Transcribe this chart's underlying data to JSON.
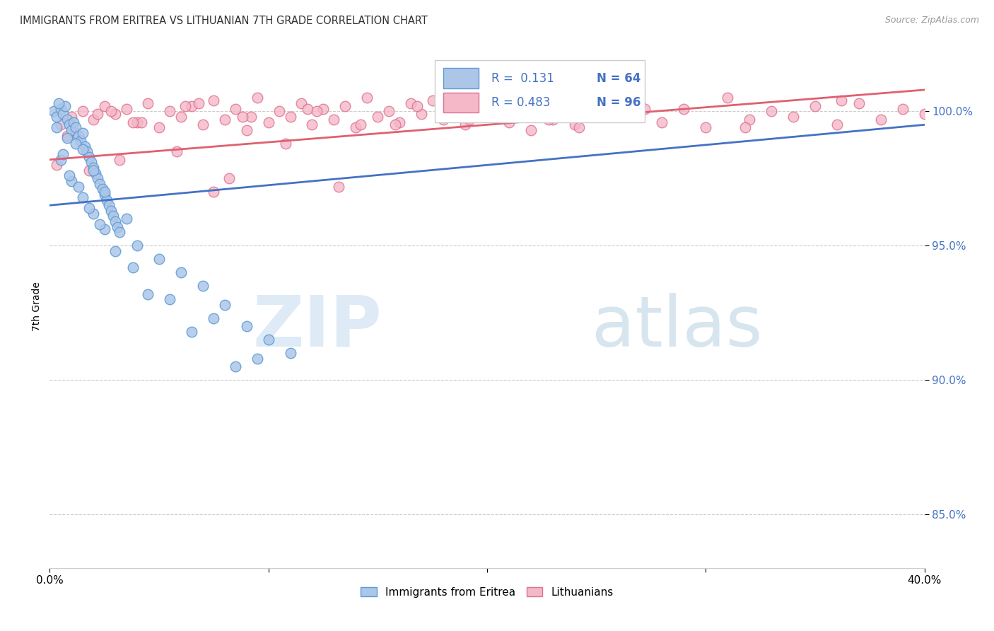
{
  "title": "IMMIGRANTS FROM ERITREA VS LITHUANIAN 7TH GRADE CORRELATION CHART",
  "source": "Source: ZipAtlas.com",
  "ylabel": "7th Grade",
  "xlim": [
    0.0,
    40.0
  ],
  "ylim": [
    83.0,
    102.5
  ],
  "yticks": [
    85.0,
    90.0,
    95.0,
    100.0
  ],
  "ytick_labels": [
    "85.0%",
    "90.0%",
    "95.0%",
    "100.0%"
  ],
  "legend_r1": "R =  0.131",
  "legend_n1": "N = 64",
  "legend_r2": "R = 0.483",
  "legend_n2": "N = 96",
  "series1_name": "Immigrants from Eritrea",
  "series2_name": "Lithuanians",
  "color_blue_fill": "#adc6e8",
  "color_blue_edge": "#5b9bd5",
  "color_pink_fill": "#f4b8c8",
  "color_pink_edge": "#e07090",
  "color_blue_line": "#4472c4",
  "color_pink_line": "#e06070",
  "blue_scatter_x": [
    0.2,
    0.3,
    0.5,
    0.6,
    0.7,
    0.8,
    0.9,
    1.0,
    1.1,
    1.2,
    1.3,
    1.4,
    1.5,
    1.6,
    1.7,
    1.8,
    1.9,
    2.0,
    2.1,
    2.2,
    2.3,
    2.4,
    2.5,
    2.6,
    2.7,
    2.8,
    2.9,
    3.0,
    3.1,
    3.2,
    0.4,
    0.8,
    1.2,
    1.5,
    2.0,
    2.5,
    3.5,
    4.0,
    5.0,
    6.0,
    7.0,
    8.0,
    9.0,
    10.0,
    11.0,
    0.5,
    1.0,
    1.5,
    2.0,
    2.5,
    0.3,
    0.6,
    0.9,
    1.3,
    1.8,
    2.3,
    3.0,
    4.5,
    6.5,
    8.5,
    3.8,
    5.5,
    7.5,
    9.5
  ],
  "blue_scatter_y": [
    100.0,
    99.8,
    100.1,
    99.9,
    100.2,
    99.7,
    99.5,
    99.3,
    99.6,
    99.4,
    99.1,
    98.9,
    99.2,
    98.7,
    98.5,
    98.3,
    98.1,
    97.9,
    97.7,
    97.5,
    97.3,
    97.1,
    96.9,
    96.7,
    96.5,
    96.3,
    96.1,
    95.9,
    95.7,
    95.5,
    100.3,
    99.0,
    98.8,
    98.6,
    97.8,
    97.0,
    96.0,
    95.0,
    94.5,
    94.0,
    93.5,
    92.8,
    92.0,
    91.5,
    91.0,
    98.2,
    97.4,
    96.8,
    96.2,
    95.6,
    99.4,
    98.4,
    97.6,
    97.2,
    96.4,
    95.8,
    94.8,
    93.2,
    91.8,
    90.5,
    94.2,
    93.0,
    92.3,
    90.8
  ],
  "pink_scatter_x": [
    0.5,
    1.0,
    1.5,
    2.0,
    2.5,
    3.0,
    3.5,
    4.0,
    4.5,
    5.0,
    5.5,
    6.0,
    6.5,
    7.0,
    7.5,
    8.0,
    8.5,
    9.0,
    9.5,
    10.0,
    10.5,
    11.0,
    11.5,
    12.0,
    12.5,
    13.0,
    13.5,
    14.0,
    14.5,
    15.0,
    15.5,
    16.0,
    16.5,
    17.0,
    17.5,
    18.0,
    18.5,
    19.0,
    19.5,
    20.0,
    20.5,
    21.0,
    21.5,
    22.0,
    22.5,
    23.0,
    23.5,
    24.0,
    25.0,
    26.0,
    27.0,
    28.0,
    29.0,
    30.0,
    31.0,
    32.0,
    33.0,
    34.0,
    35.0,
    36.0,
    37.0,
    38.0,
    39.0,
    40.0,
    1.2,
    2.8,
    4.2,
    6.8,
    9.2,
    11.8,
    14.2,
    16.8,
    19.2,
    21.8,
    24.2,
    26.8,
    0.8,
    2.2,
    3.8,
    6.2,
    8.8,
    12.2,
    15.8,
    18.2,
    22.8,
    27.2,
    31.8,
    36.2,
    1.8,
    3.2,
    5.8,
    8.2,
    10.8,
    13.2,
    0.3,
    7.5
  ],
  "pink_scatter_y": [
    99.5,
    99.8,
    100.0,
    99.7,
    100.2,
    99.9,
    100.1,
    99.6,
    100.3,
    99.4,
    100.0,
    99.8,
    100.2,
    99.5,
    100.4,
    99.7,
    100.1,
    99.3,
    100.5,
    99.6,
    100.0,
    99.8,
    100.3,
    99.5,
    100.1,
    99.7,
    100.2,
    99.4,
    100.5,
    99.8,
    100.0,
    99.6,
    100.3,
    99.9,
    100.4,
    99.7,
    100.1,
    99.5,
    100.2,
    99.8,
    100.5,
    99.6,
    100.0,
    99.3,
    100.4,
    99.7,
    100.2,
    99.5,
    100.0,
    99.8,
    100.3,
    99.6,
    100.1,
    99.4,
    100.5,
    99.7,
    100.0,
    99.8,
    100.2,
    99.5,
    100.3,
    99.7,
    100.1,
    99.9,
    99.2,
    100.0,
    99.6,
    100.3,
    99.8,
    100.1,
    99.5,
    100.2,
    99.7,
    100.0,
    99.4,
    100.3,
    99.1,
    99.9,
    99.6,
    100.2,
    99.8,
    100.0,
    99.5,
    100.3,
    99.7,
    100.1,
    99.4,
    100.4,
    97.8,
    98.2,
    98.5,
    97.5,
    98.8,
    97.2,
    98.0,
    97.0
  ],
  "blue_line_x": [
    0.0,
    40.0
  ],
  "blue_line_y": [
    96.5,
    99.5
  ],
  "pink_line_x": [
    0.0,
    40.0
  ],
  "pink_line_y": [
    98.2,
    100.8
  ]
}
